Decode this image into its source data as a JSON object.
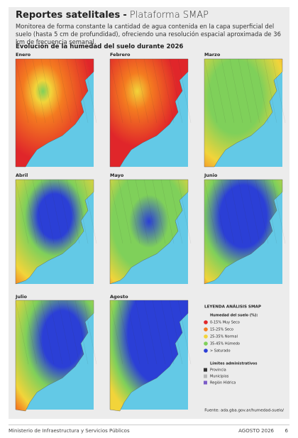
{
  "header": {
    "title": "Reportes satelitales",
    "separator": "-",
    "platform": "Plataforma SMAP",
    "description": "Monitorea de forma constante la cantidad de agua contenida en la capa superficial del suelo (hasta 5 cm de profundidad), ofreciendo una resolución espacial aproximada de 36 km de frecuencia semanal."
  },
  "section": {
    "title": "Evolución de la humedad del suelo durante 2026"
  },
  "maps": [
    {
      "label": "Enero"
    },
    {
      "label": "Febrero"
    },
    {
      "label": "Marzo"
    },
    {
      "label": "Abril"
    },
    {
      "label": "Mayo"
    },
    {
      "label": "Junio"
    },
    {
      "label": "Julio"
    },
    {
      "label": "Agosto"
    }
  ],
  "legend": {
    "title": "LEYENDA ANÁLISIS SMAP",
    "humidity_title": "Humedad del suelo (%):",
    "humidity_items": [
      {
        "label": "0-15% Muy Seco",
        "color": "#e0262a"
      },
      {
        "label": "15-25% Seco",
        "color": "#f47c20"
      },
      {
        "label": "25-35% Normal",
        "color": "#f2d43a"
      },
      {
        "label": "35-45% Húmedo",
        "color": "#7fd05a"
      },
      {
        "label": "> Saturado",
        "color": "#2b3fd6"
      }
    ],
    "admin_title": "Límites administrativos",
    "admin_items": [
      {
        "label": "Provincia",
        "color": "#333333"
      },
      {
        "label": "Municipios",
        "color": "#b8b8b8"
      },
      {
        "label": "Región Hídrica",
        "color": "#7b5cc7"
      }
    ]
  },
  "source": "Fuente: ada.gba.gov.ar/humedad-suelo/",
  "footer": {
    "left": "Ministerio de Infraestructura y Servicios Públicos",
    "date": "AGOSTO 2026",
    "page": "6"
  }
}
